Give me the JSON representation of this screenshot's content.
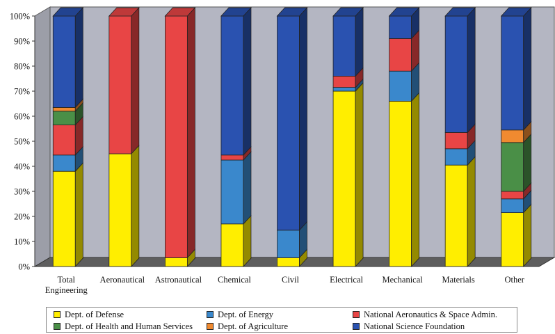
{
  "chart_data": {
    "type": "bar",
    "stacked": true,
    "three_d": true,
    "categories": [
      "Total\nEngineering",
      "Aeronautical",
      "Astronautical",
      "Chemical",
      "Civil",
      "Electrical",
      "Mechanical",
      "Materials",
      "Other"
    ],
    "series": [
      {
        "name": "Dept. of Defense",
        "color": "#ffee00",
        "values": [
          38,
          45,
          3.5,
          17,
          3.5,
          70,
          66,
          40.5,
          21.5
        ]
      },
      {
        "name": "Dept. of Energy",
        "color": "#3a88cc",
        "values": [
          6.5,
          0,
          0,
          25.5,
          11,
          1.5,
          12,
          6.5,
          5.5
        ]
      },
      {
        "name": "National Aeronautics & Space Admin.",
        "color": "#e84545",
        "values": [
          12,
          55,
          96.5,
          2,
          0,
          4.5,
          13,
          6.5,
          3
        ]
      },
      {
        "name": "Dept. of Health and Human Services",
        "color": "#4a8f47",
        "values": [
          5.5,
          0,
          0,
          0,
          0,
          0,
          0,
          0,
          19.5
        ]
      },
      {
        "name": "Dept. of Agriculture",
        "color": "#f08a30",
        "values": [
          1.5,
          0,
          0,
          0,
          0,
          0,
          0,
          0,
          5
        ]
      },
      {
        "name": "National Science Foundation",
        "color": "#2a52b0",
        "values": [
          36.5,
          0,
          0,
          55.5,
          85.5,
          24,
          9,
          46.5,
          45.5
        ]
      }
    ],
    "y_axis": {
      "min": 0,
      "max": 100,
      "step": 10,
      "tick_format": "{v}%"
    },
    "legend_position": "bottom",
    "grid": false,
    "title": "",
    "xlabel": "",
    "ylabel": ""
  }
}
